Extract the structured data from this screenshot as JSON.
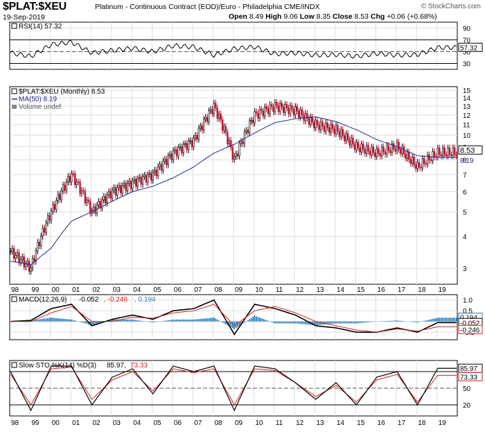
{
  "header": {
    "symbol": "$PLAT:$XEU",
    "description": "Platinum - Continuous Contract (EOD)/Euro - Philadelphia CME/INDX",
    "date": "19-Sep-2019",
    "open_label": "Open",
    "open": "8.49",
    "high_label": "High",
    "high": "9.06",
    "low_label": "Low",
    "low": "8.35",
    "close_label": "Close",
    "close": "8.53",
    "chg_label": "Chg",
    "chg": "+0.06 (+0.68%)",
    "brand": "© StockCharts.com"
  },
  "colors": {
    "up": "#000000",
    "down": "#c8102e",
    "ma": "#1f2a8c",
    "macd_signal": "#d22020",
    "histogram": "#2a7fbf",
    "rsi_fill": "#3f7a3f",
    "grid": "#dddddd"
  },
  "chart_data": [
    {
      "type": "line",
      "panel": "RSI",
      "legend": "RSI(14) 57.32",
      "last_value": "57.32",
      "y_ticks": [
        "90",
        "70",
        "50",
        "30"
      ],
      "ylim": [
        20,
        100
      ],
      "overbought": 70,
      "oversold": 30,
      "x": [
        "98",
        "99",
        "00",
        "01",
        "02",
        "03",
        "04",
        "05",
        "06",
        "07",
        "08",
        "09",
        "10",
        "11",
        "12",
        "13",
        "14",
        "15",
        "16",
        "17",
        "18",
        "19"
      ],
      "values": [
        48,
        42,
        62,
        66,
        48,
        52,
        56,
        50,
        60,
        58,
        44,
        55,
        58,
        46,
        48,
        44,
        45,
        42,
        47,
        44,
        45,
        57
      ]
    },
    {
      "type": "candlestick",
      "panel": "Price",
      "legend_symbol": "$PLAT:$XEU (Monthly) 8.53",
      "legend_ma": "MA(50) 8.19",
      "legend_volume": "Volume undef",
      "last_value": "8.53",
      "ma_last_value": "8.19",
      "scale": "log",
      "y_ticks": [
        "15",
        "14",
        "13",
        "12",
        "11",
        "10",
        "9",
        "8",
        "7",
        "6",
        "5",
        "4",
        "3"
      ],
      "ylim": [
        2.6,
        15.5
      ],
      "x": [
        "98",
        "99",
        "00",
        "01",
        "02",
        "03",
        "04",
        "05",
        "06",
        "07",
        "08",
        "09",
        "10",
        "11",
        "12",
        "13",
        "14",
        "15",
        "16",
        "17",
        "18",
        "19"
      ],
      "close": [
        3.5,
        3.0,
        5.0,
        7.0,
        5.0,
        6.0,
        6.5,
        7.0,
        8.5,
        9.5,
        13.0,
        8.0,
        12.0,
        13.0,
        12.5,
        11.0,
        10.5,
        9.0,
        8.5,
        9.0,
        7.5,
        8.53
      ],
      "ma50": [
        3.2,
        3.1,
        3.6,
        4.6,
        5.0,
        5.5,
        6.0,
        6.3,
        6.8,
        7.5,
        8.5,
        9.2,
        10.2,
        11.2,
        11.6,
        11.8,
        11.3,
        10.5,
        9.6,
        9.0,
        8.3,
        8.19
      ]
    },
    {
      "type": "line",
      "panel": "MACD",
      "legend_prefix": "MACD(12,26,9)",
      "legend_macd": "-0.052",
      "legend_signal": "-0.246",
      "legend_hist": "0.194",
      "tag_hist": "0.194",
      "tag_macd": "-0.052",
      "tag_signal": "-0.246",
      "y_ticks": [
        "1.0",
        "0.5",
        "0.0",
        "-0.5"
      ],
      "ylim": [
        -0.85,
        1.25
      ],
      "x": [
        "98",
        "99",
        "00",
        "01",
        "02",
        "03",
        "04",
        "05",
        "06",
        "07",
        "08",
        "09",
        "10",
        "11",
        "12",
        "13",
        "14",
        "15",
        "16",
        "17",
        "18",
        "19"
      ],
      "macd": [
        0.0,
        0.05,
        0.6,
        0.8,
        -0.2,
        0.1,
        0.3,
        0.1,
        0.5,
        0.6,
        1.0,
        -0.6,
        0.8,
        0.6,
        0.3,
        -0.2,
        -0.3,
        -0.5,
        -0.5,
        -0.3,
        -0.5,
        -0.052
      ],
      "signal": [
        0.0,
        0.0,
        0.4,
        0.7,
        0.0,
        0.0,
        0.2,
        0.15,
        0.4,
        0.5,
        0.8,
        -0.2,
        0.5,
        0.7,
        0.4,
        0.0,
        -0.2,
        -0.4,
        -0.5,
        -0.35,
        -0.45,
        -0.246
      ]
    },
    {
      "type": "line",
      "panel": "STO",
      "legend_prefix": "Slow STO %K(14) %D(3)",
      "legend_k": "85.97",
      "legend_d": "73.33",
      "tag_k": "85.97",
      "tag_d": "73.33",
      "y_ticks": [
        "80",
        "50",
        "20"
      ],
      "ylim": [
        0,
        100
      ],
      "x": [
        "98",
        "99",
        "00",
        "01",
        "02",
        "03",
        "04",
        "05",
        "06",
        "07",
        "08",
        "09",
        "10",
        "11",
        "12",
        "13",
        "14",
        "15",
        "16",
        "17",
        "18",
        "19"
      ],
      "k": [
        80,
        10,
        90,
        90,
        20,
        70,
        85,
        40,
        90,
        80,
        90,
        10,
        90,
        85,
        60,
        30,
        60,
        20,
        70,
        80,
        20,
        85.97
      ],
      "d": [
        75,
        20,
        85,
        88,
        30,
        65,
        80,
        45,
        85,
        78,
        85,
        20,
        85,
        82,
        60,
        35,
        55,
        25,
        65,
        75,
        25,
        73.33
      ]
    }
  ]
}
